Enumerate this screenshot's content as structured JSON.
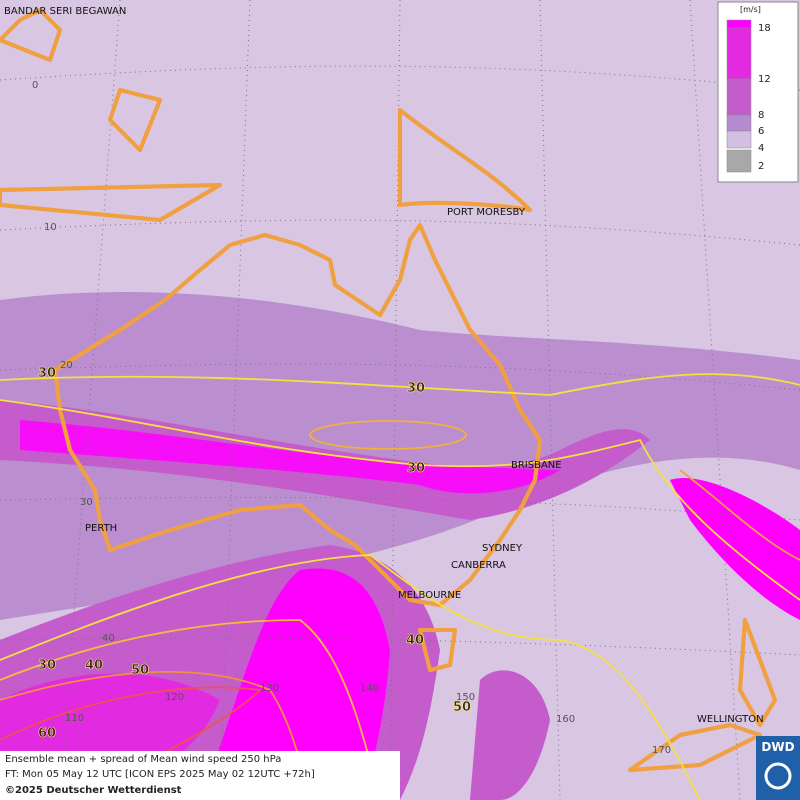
{
  "map": {
    "cities": [
      "BANDAR SERI BEGAWAN",
      "PORT MORESBY",
      "PERTH",
      "BRISBANE",
      "SYDNEY",
      "CANBERRA",
      "MELBOURNE",
      "WELLINGTON"
    ],
    "latitude_labels": [
      "0",
      "10",
      "20",
      "30",
      "40"
    ],
    "longitude_labels": [
      "110",
      "120",
      "130",
      "140",
      "150",
      "160",
      "170"
    ],
    "contour_labels": [
      "30",
      "30",
      "30",
      "30",
      "40",
      "40",
      "50",
      "50",
      "60"
    ],
    "legend": {
      "unit": "[m/s]",
      "levels": [
        {
          "value": 18,
          "color": "#ff00ff"
        },
        {
          "value": 12,
          "color": "#e22ae0"
        },
        {
          "value": 8,
          "color": "#c45ccc"
        },
        {
          "value": 6,
          "color": "#b68ad0"
        },
        {
          "value": 4,
          "color": "#d3bfe2"
        },
        {
          "value": 2,
          "color": "#a8a8a8"
        }
      ]
    },
    "footer": [
      "Ensemble mean + spread of Mean wind speed 250 hPa",
      "FT: Mon 05 May 12 UTC [ICON EPS 2025 May 02 12UTC +72h]",
      "©2025 Deutscher Wetterdienst"
    ],
    "logo": "DWD"
  }
}
